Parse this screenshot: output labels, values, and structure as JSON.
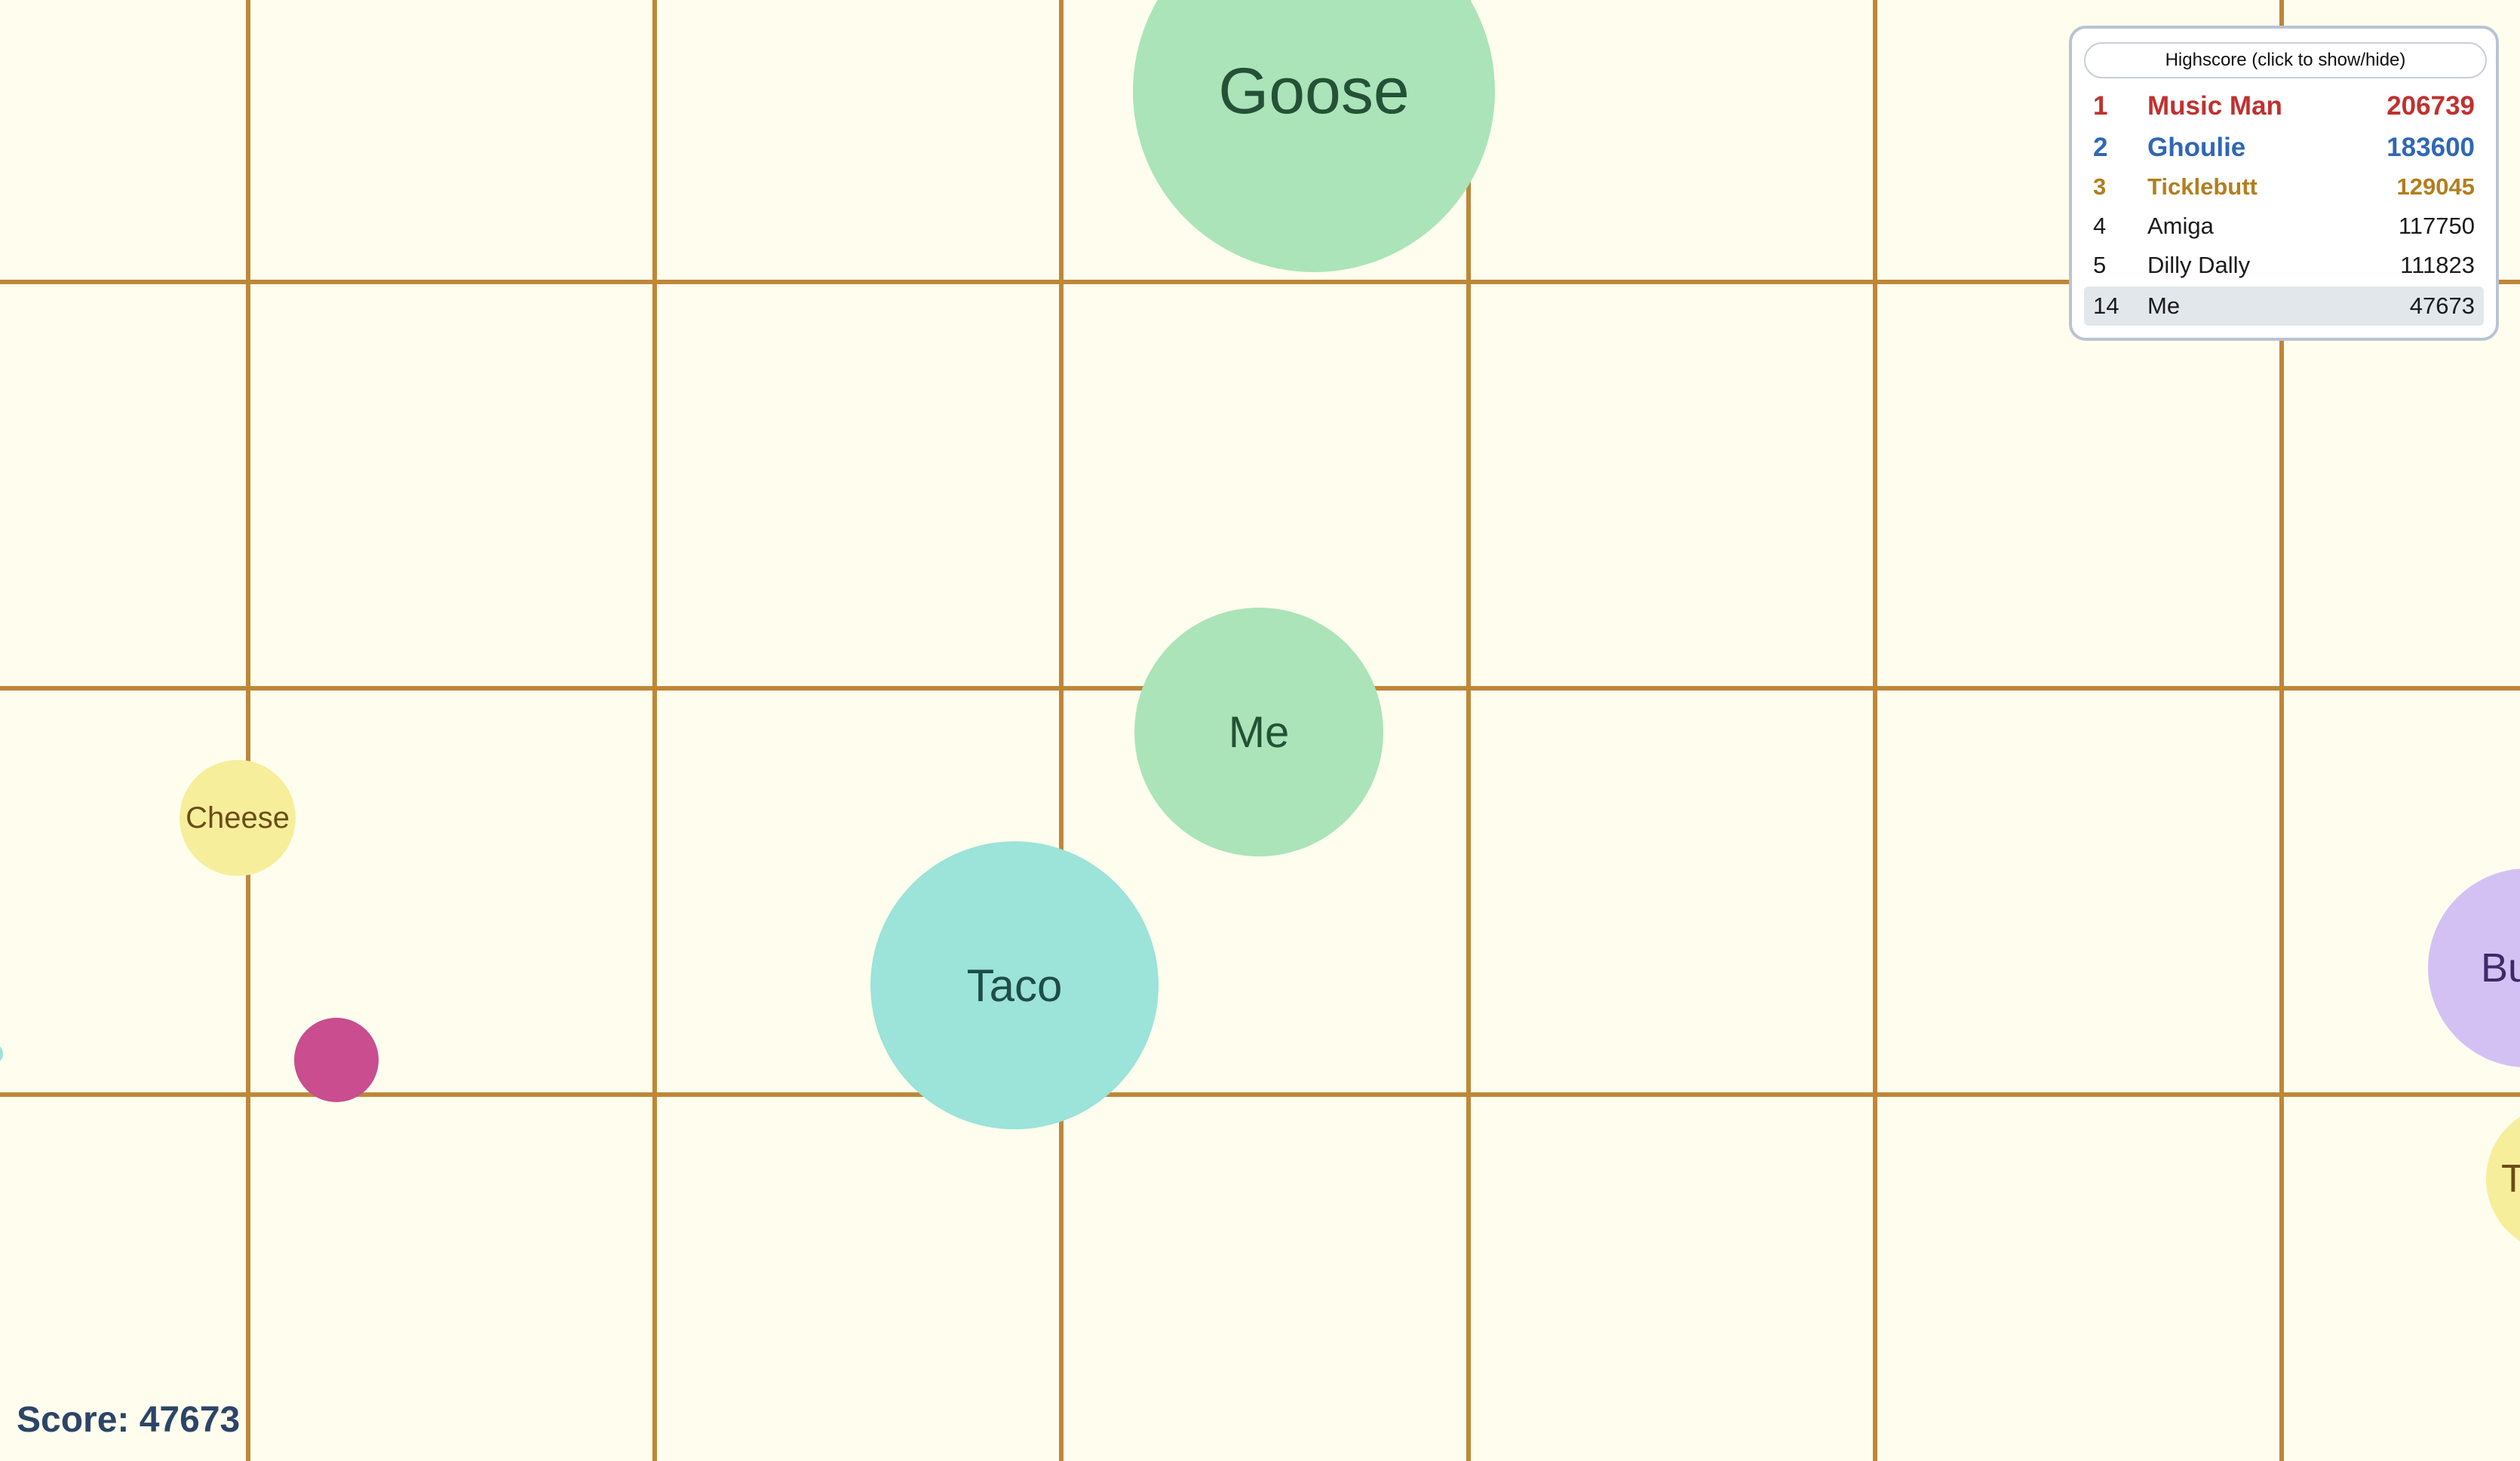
{
  "game": {
    "background_color": "#fffeee",
    "grid_color": "#be8738"
  },
  "cells": {
    "goose": {
      "name": "Goose",
      "color": "#abe4b8"
    },
    "me": {
      "name": "Me",
      "color": "#abe4b8"
    },
    "taco": {
      "name": "Taco",
      "color": "#9ce3d9"
    },
    "cheese": {
      "name": "Cheese",
      "color": "#f7ee9c"
    },
    "bu": {
      "name": "Bu",
      "color": "#d4c1f3"
    },
    "t": {
      "name": "T",
      "color": "#f7ee9c"
    },
    "unnamed_pink": {
      "color": "#c94d8f"
    },
    "unnamed_teal": {
      "color": "#9ce3d9"
    }
  },
  "leaderboard": {
    "toggle_label": "Highscore (click to show/hide)",
    "rows": [
      {
        "rank": "1",
        "name": "Music Man",
        "score": "206739",
        "color": "#c0312f"
      },
      {
        "rank": "2",
        "name": "Ghoulie",
        "score": "183600",
        "color": "#2f67b6"
      },
      {
        "rank": "3",
        "name": "Ticklebutt",
        "score": "129045",
        "color": "#b37e1f"
      },
      {
        "rank": "4",
        "name": "Amiga",
        "score": "117750"
      },
      {
        "rank": "5",
        "name": "Dilly Dally",
        "score": "111823"
      },
      {
        "rank": "14",
        "name": "Me",
        "score": "47673"
      }
    ]
  },
  "score": {
    "text": "Score: 47673"
  }
}
